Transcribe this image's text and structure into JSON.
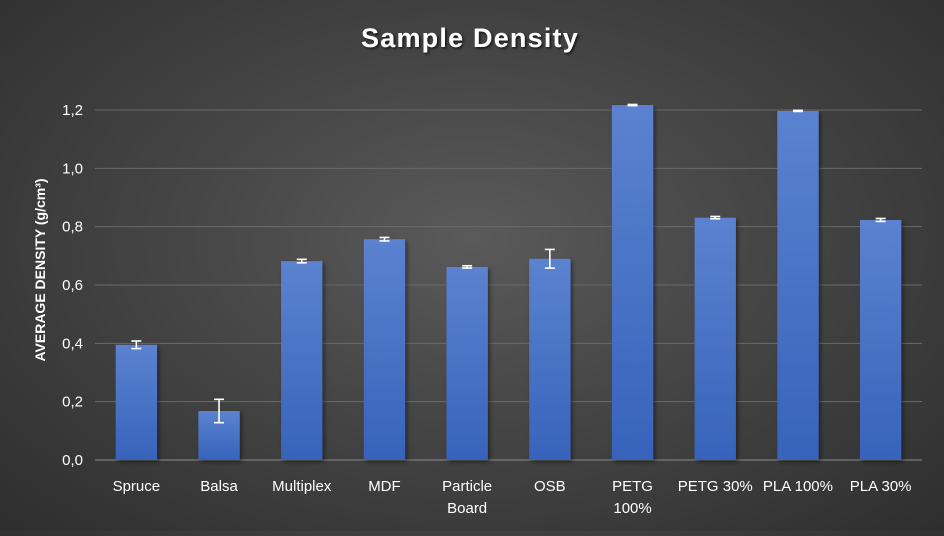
{
  "chart_data": {
    "type": "bar",
    "title": "Sample Density",
    "xlabel": "",
    "ylabel": "AVERAGE DENSITY (g/cm³)",
    "categories": [
      [
        "Spruce"
      ],
      [
        "Balsa"
      ],
      [
        "Multiplex"
      ],
      [
        "MDF"
      ],
      [
        "Particle",
        "Board"
      ],
      [
        "OSB"
      ],
      [
        "PETG",
        "100%"
      ],
      [
        "PETG 30%"
      ],
      [
        "PLA 100%"
      ],
      [
        "PLA 30%"
      ]
    ],
    "values": [
      0.395,
      0.168,
      0.682,
      0.757,
      0.662,
      0.69,
      1.217,
      0.831,
      1.197,
      0.823
    ],
    "error": [
      0.013,
      0.04,
      0.006,
      0.006,
      0.004,
      0.032,
      0.002,
      0.004,
      0.002,
      0.005
    ],
    "ylim": [
      0,
      1.2
    ],
    "yticks": [
      "0,0",
      "0,2",
      "0,4",
      "0,6",
      "0,8",
      "1,0",
      "1,2"
    ],
    "grid": true,
    "legend": "none",
    "colors": {
      "bar_top": "#5b82cf",
      "bar_bottom": "#3763bb",
      "grid": "#6a6a6a",
      "text": "#ffffff",
      "error_bar": "#ffffff"
    }
  }
}
